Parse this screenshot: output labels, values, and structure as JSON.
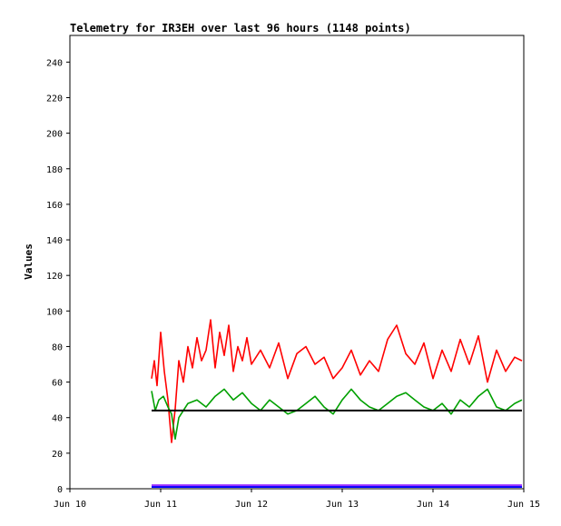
{
  "chart_data": {
    "type": "line",
    "title": "Telemetry for IR3EH over last 96 hours (1148 points)",
    "xlabel": "",
    "ylabel": "Values",
    "x_range": [
      "Jun 10",
      "Jun 15"
    ],
    "ylim": [
      0,
      255
    ],
    "grid": false,
    "legend": "none",
    "x_ticks": [
      "Jun 10",
      "Jun 11",
      "Jun 12",
      "Jun 13",
      "Jun 14",
      "Jun 15"
    ],
    "y_ticks": [
      0,
      20,
      40,
      60,
      80,
      100,
      120,
      140,
      160,
      180,
      200,
      220,
      240
    ],
    "series": [
      {
        "color": "#ff0000",
        "x": [
          10.9,
          10.93,
          10.96,
          11.0,
          11.04,
          11.08,
          11.12,
          11.16,
          11.2,
          11.25,
          11.3,
          11.35,
          11.4,
          11.45,
          11.5,
          11.55,
          11.6,
          11.65,
          11.7,
          11.75,
          11.8,
          11.85,
          11.9,
          11.95,
          12.0,
          12.1,
          12.2,
          12.3,
          12.4,
          12.5,
          12.6,
          12.7,
          12.8,
          12.9,
          13.0,
          13.1,
          13.2,
          13.3,
          13.4,
          13.5,
          13.6,
          13.7,
          13.8,
          13.9,
          14.0,
          14.1,
          14.2,
          14.3,
          14.4,
          14.5,
          14.6,
          14.7,
          14.8,
          14.9,
          14.98
        ],
        "y": [
          62,
          72,
          58,
          88,
          66,
          50,
          26,
          45,
          72,
          60,
          80,
          68,
          85,
          72,
          78,
          95,
          68,
          88,
          75,
          92,
          66,
          80,
          72,
          85,
          70,
          78,
          68,
          82,
          62,
          76,
          80,
          70,
          74,
          62,
          68,
          78,
          64,
          72,
          66,
          84,
          92,
          76,
          70,
          82,
          62,
          78,
          66,
          84,
          70,
          86,
          60,
          78,
          66,
          74,
          72
        ]
      },
      {
        "color": "#00a000",
        "x": [
          10.9,
          10.94,
          10.98,
          11.03,
          11.08,
          11.12,
          11.16,
          11.2,
          11.3,
          11.4,
          11.5,
          11.6,
          11.7,
          11.8,
          11.9,
          12.0,
          12.1,
          12.2,
          12.3,
          12.4,
          12.5,
          12.6,
          12.7,
          12.8,
          12.9,
          13.0,
          13.1,
          13.2,
          13.3,
          13.4,
          13.5,
          13.6,
          13.7,
          13.8,
          13.9,
          14.0,
          14.1,
          14.2,
          14.3,
          14.4,
          14.5,
          14.6,
          14.7,
          14.8,
          14.9,
          14.98
        ],
        "y": [
          55,
          44,
          50,
          52,
          46,
          42,
          28,
          40,
          48,
          50,
          46,
          52,
          56,
          50,
          54,
          48,
          44,
          50,
          46,
          42,
          44,
          48,
          52,
          46,
          42,
          50,
          56,
          50,
          46,
          44,
          48,
          52,
          54,
          50,
          46,
          44,
          48,
          42,
          50,
          46,
          52,
          56,
          46,
          44,
          48,
          50
        ]
      },
      {
        "color": "#000000",
        "x": [
          10.9,
          14.98
        ],
        "y": [
          44,
          44
        ]
      },
      {
        "color": "#0000ff",
        "x": [
          10.9,
          14.98
        ],
        "y": [
          1,
          1
        ]
      },
      {
        "color": "#9b30ff",
        "x": [
          10.9,
          14.98
        ],
        "y": [
          2,
          2
        ]
      }
    ]
  }
}
